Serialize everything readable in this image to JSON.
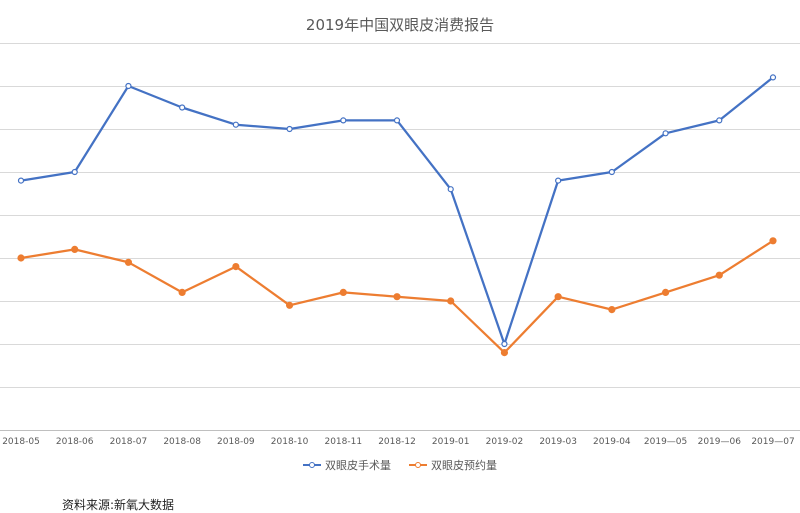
{
  "chart_data": {
    "type": "line",
    "title": "2019年中国双眼皮消费报告",
    "categories": [
      "2018-05",
      "2018-06",
      "2018-07",
      "2018-08",
      "2018-09",
      "2018-10",
      "2018-11",
      "2018-12",
      "2019-01",
      "2019-02",
      "2019-03",
      "2019-04",
      "2019—05",
      "2019—06",
      "2019—07"
    ],
    "series": [
      {
        "name": "双眼皮手术量",
        "color": "#4472C4",
        "values": [
          58,
          60,
          80,
          75,
          71,
          70,
          72,
          72,
          56,
          20,
          58,
          60,
          69,
          72,
          82
        ]
      },
      {
        "name": "双眼皮预约量",
        "color": "#ED7D31",
        "values": [
          40,
          42,
          39,
          32,
          38,
          29,
          32,
          31,
          30,
          18,
          31,
          28,
          32,
          36,
          44
        ]
      }
    ],
    "ylim": [
      0,
      90
    ],
    "y_gridlines": [
      0,
      10,
      20,
      30,
      40,
      50,
      60,
      70,
      80,
      90
    ],
    "y_tick_labels_shown": false,
    "grid": true,
    "legend_position": "bottom",
    "xlabel": "",
    "ylabel": ""
  },
  "source_note": "资料来源:新氧大数据"
}
